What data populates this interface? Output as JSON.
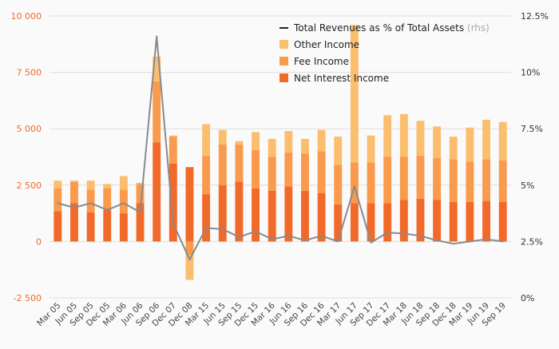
{
  "chart_data": {
    "type": "bar",
    "stacked": true,
    "categories": [
      "Mar 05",
      "Jun 05",
      "Sep 05",
      "Dec 05",
      "Mar 06",
      "Jun 06",
      "Sep 06",
      "Dec 07",
      "Dec 08",
      "Mar 15",
      "Jun 15",
      "Sep 15",
      "Dec 15",
      "Mar 16",
      "Jun 16",
      "Sep 16",
      "Dec 16",
      "Mar 17",
      "Jun 17",
      "Sep 17",
      "Dec 17",
      "Mar 18",
      "Jun 18",
      "Sep 18",
      "Dec 18",
      "Mar 19",
      "Jun 19",
      "Sep 19"
    ],
    "series": [
      {
        "name": "Net Interest Income",
        "axis": "left",
        "color": "#f26a2a",
        "values": [
          1350,
          1700,
          1300,
          1400,
          1250,
          1700,
          4400,
          3450,
          3300,
          2100,
          2500,
          2650,
          2350,
          2250,
          2450,
          2250,
          2150,
          1650,
          1700,
          1700,
          1700,
          1850,
          1900,
          1850,
          1750,
          1750,
          1800,
          1750
        ]
      },
      {
        "name": "Fee Income",
        "axis": "left",
        "color": "#f99a4c",
        "values": [
          1000,
          950,
          1000,
          950,
          1050,
          850,
          2700,
          1200,
          -600,
          1700,
          1800,
          1650,
          1700,
          1500,
          1500,
          1650,
          1850,
          1750,
          1800,
          1800,
          2050,
          1900,
          1900,
          1850,
          1900,
          1800,
          1850,
          1850
        ]
      },
      {
        "name": "Other Income",
        "axis": "left",
        "color": "#fbbe6e",
        "values": [
          350,
          50,
          400,
          200,
          600,
          50,
          1100,
          50,
          -1100,
          1400,
          650,
          150,
          800,
          800,
          950,
          650,
          950,
          1250,
          6100,
          1200,
          1850,
          1900,
          1550,
          1400,
          1000,
          1500,
          1750,
          1700
        ]
      },
      {
        "name": "Total Revenues as % of Total Assets",
        "axis": "right",
        "type": "line",
        "color": "#8a8a8a",
        "values": [
          4.2,
          4.0,
          4.2,
          3.9,
          4.2,
          3.8,
          11.6,
          3.3,
          1.7,
          3.1,
          3.05,
          2.7,
          2.95,
          2.6,
          2.75,
          2.55,
          2.75,
          2.5,
          4.95,
          2.45,
          2.9,
          2.85,
          2.75,
          2.55,
          2.4,
          2.5,
          2.6,
          2.5
        ]
      }
    ],
    "y_left": {
      "range": [
        -2500,
        10000
      ],
      "ticks": [
        -2500,
        0,
        2500,
        5000,
        7500,
        10000
      ],
      "tick_labels": [
        "-2 500",
        "0",
        "2 500",
        "5 000",
        "7 500",
        "10 000"
      ],
      "color": "#f26a2a"
    },
    "y_right": {
      "range": [
        0,
        12.5
      ],
      "ticks": [
        0,
        2.5,
        5,
        7.5,
        10,
        12.5
      ],
      "tick_labels": [
        "0%",
        "2.5%",
        "5%",
        "7.5%",
        "10%",
        "12.5%"
      ]
    },
    "legend": {
      "placement": "top-center",
      "items": [
        {
          "label": "Total Revenues as % of Total Assets",
          "suffix": "(rhs)",
          "marker": "line",
          "color": "#222222"
        },
        {
          "label": "Other Income",
          "marker": "square",
          "color": "#fbbe6e"
        },
        {
          "label": "Fee Income",
          "marker": "square",
          "color": "#f99a4c"
        },
        {
          "label": "Net Interest Income",
          "marker": "square",
          "color": "#f26a2a"
        }
      ]
    },
    "grid": "horizontal"
  }
}
